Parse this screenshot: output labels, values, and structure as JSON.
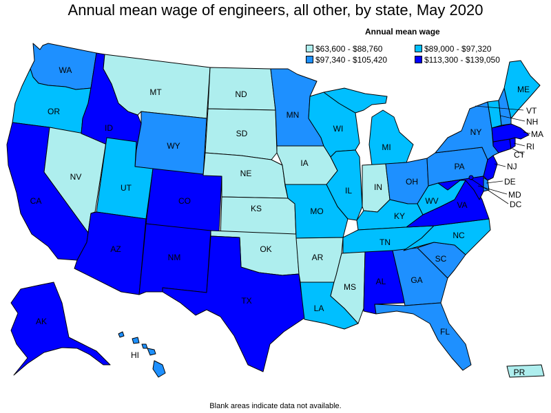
{
  "title": "Annual mean wage of engineers, all other, by state, May 2020",
  "legend": {
    "title": "Annual mean wage",
    "bins": [
      {
        "label": "$63,600 - $88,760",
        "color": "#aeeeee"
      },
      {
        "label": "$89,000 - $97,320",
        "color": "#00bfff"
      },
      {
        "label": "$97,340 - $105,420",
        "color": "#1e90ff"
      },
      {
        "label": "$113,300 - $139,050",
        "color": "#0000ff"
      }
    ]
  },
  "footnote": "Blank areas indicate data not available.",
  "states": [
    {
      "abbr": "WA",
      "bin": 2
    },
    {
      "abbr": "OR",
      "bin": 1
    },
    {
      "abbr": "CA",
      "bin": 3
    },
    {
      "abbr": "NV",
      "bin": 0
    },
    {
      "abbr": "ID",
      "bin": 3
    },
    {
      "abbr": "MT",
      "bin": 0
    },
    {
      "abbr": "WY",
      "bin": 2
    },
    {
      "abbr": "UT",
      "bin": 1
    },
    {
      "abbr": "AZ",
      "bin": 3
    },
    {
      "abbr": "CO",
      "bin": 3
    },
    {
      "abbr": "NM",
      "bin": 3
    },
    {
      "abbr": "ND",
      "bin": 0
    },
    {
      "abbr": "SD",
      "bin": 0
    },
    {
      "abbr": "NE",
      "bin": 0
    },
    {
      "abbr": "KS",
      "bin": 0
    },
    {
      "abbr": "OK",
      "bin": 0
    },
    {
      "abbr": "TX",
      "bin": 3
    },
    {
      "abbr": "MN",
      "bin": 2
    },
    {
      "abbr": "IA",
      "bin": 0
    },
    {
      "abbr": "MO",
      "bin": 1
    },
    {
      "abbr": "AR",
      "bin": 0
    },
    {
      "abbr": "LA",
      "bin": 1
    },
    {
      "abbr": "WI",
      "bin": 1
    },
    {
      "abbr": "IL",
      "bin": 1
    },
    {
      "abbr": "MI",
      "bin": 1
    },
    {
      "abbr": "IN",
      "bin": 0
    },
    {
      "abbr": "OH",
      "bin": 2
    },
    {
      "abbr": "KY",
      "bin": 1
    },
    {
      "abbr": "TN",
      "bin": 1
    },
    {
      "abbr": "MS",
      "bin": 0
    },
    {
      "abbr": "AL",
      "bin": 3
    },
    {
      "abbr": "GA",
      "bin": 2
    },
    {
      "abbr": "FL",
      "bin": 2
    },
    {
      "abbr": "SC",
      "bin": 2
    },
    {
      "abbr": "NC",
      "bin": 1
    },
    {
      "abbr": "VA",
      "bin": 3
    },
    {
      "abbr": "WV",
      "bin": 1
    },
    {
      "abbr": "PA",
      "bin": 2
    },
    {
      "abbr": "NY",
      "bin": 2
    },
    {
      "abbr": "NJ",
      "bin": 3
    },
    {
      "abbr": "DE",
      "bin": 2
    },
    {
      "abbr": "MD",
      "bin": 3
    },
    {
      "abbr": "DC",
      "bin": 3
    },
    {
      "abbr": "CT",
      "bin": 3
    },
    {
      "abbr": "RI",
      "bin": 3
    },
    {
      "abbr": "MA",
      "bin": 3
    },
    {
      "abbr": "VT",
      "bin": 1
    },
    {
      "abbr": "NH",
      "bin": 2
    },
    {
      "abbr": "ME",
      "bin": 1
    },
    {
      "abbr": "AK",
      "bin": 3
    },
    {
      "abbr": "HI",
      "bin": 2
    },
    {
      "abbr": "PR",
      "bin": 0
    }
  ]
}
